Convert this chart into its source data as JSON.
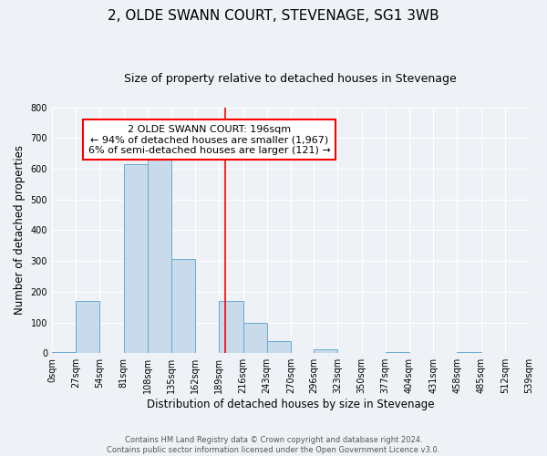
{
  "title": "2, OLDE SWANN COURT, STEVENAGE, SG1 3WB",
  "subtitle": "Size of property relative to detached houses in Stevenage",
  "xlabel": "Distribution of detached houses by size in Stevenage",
  "ylabel": "Number of detached properties",
  "bin_edges": [
    0,
    27,
    54,
    81,
    108,
    135,
    162,
    189,
    216,
    243,
    270,
    296,
    323,
    350,
    377,
    404,
    431,
    458,
    485,
    512,
    539
  ],
  "bin_labels": [
    "0sqm",
    "27sqm",
    "54sqm",
    "81sqm",
    "108sqm",
    "135sqm",
    "162sqm",
    "189sqm",
    "216sqm",
    "243sqm",
    "270sqm",
    "296sqm",
    "323sqm",
    "350sqm",
    "377sqm",
    "404sqm",
    "431sqm",
    "458sqm",
    "485sqm",
    "512sqm",
    "539sqm"
  ],
  "bar_heights": [
    5,
    170,
    0,
    615,
    650,
    305,
    0,
    170,
    100,
    40,
    0,
    12,
    0,
    0,
    5,
    0,
    0,
    3,
    0,
    2
  ],
  "bar_color": "#c9daea",
  "bar_edge_color": "#6aaad4",
  "property_size": 196,
  "vline_color": "red",
  "annotation_text": "2 OLDE SWANN COURT: 196sqm\n← 94% of detached houses are smaller (1,967)\n6% of semi-detached houses are larger (121) →",
  "annotation_box_color": "white",
  "annotation_box_edge_color": "red",
  "ylim": [
    0,
    800
  ],
  "yticks": [
    0,
    100,
    200,
    300,
    400,
    500,
    600,
    700,
    800
  ],
  "footer_line1": "Contains HM Land Registry data © Crown copyright and database right 2024.",
  "footer_line2": "Contains public sector information licensed under the Open Government Licence v3.0.",
  "background_color": "#eef2f7",
  "grid_color": "#ffffff",
  "title_fontsize": 11,
  "subtitle_fontsize": 9,
  "xlabel_fontsize": 8.5,
  "ylabel_fontsize": 8.5,
  "tick_fontsize": 7,
  "annot_fontsize": 8,
  "footer_fontsize": 6
}
